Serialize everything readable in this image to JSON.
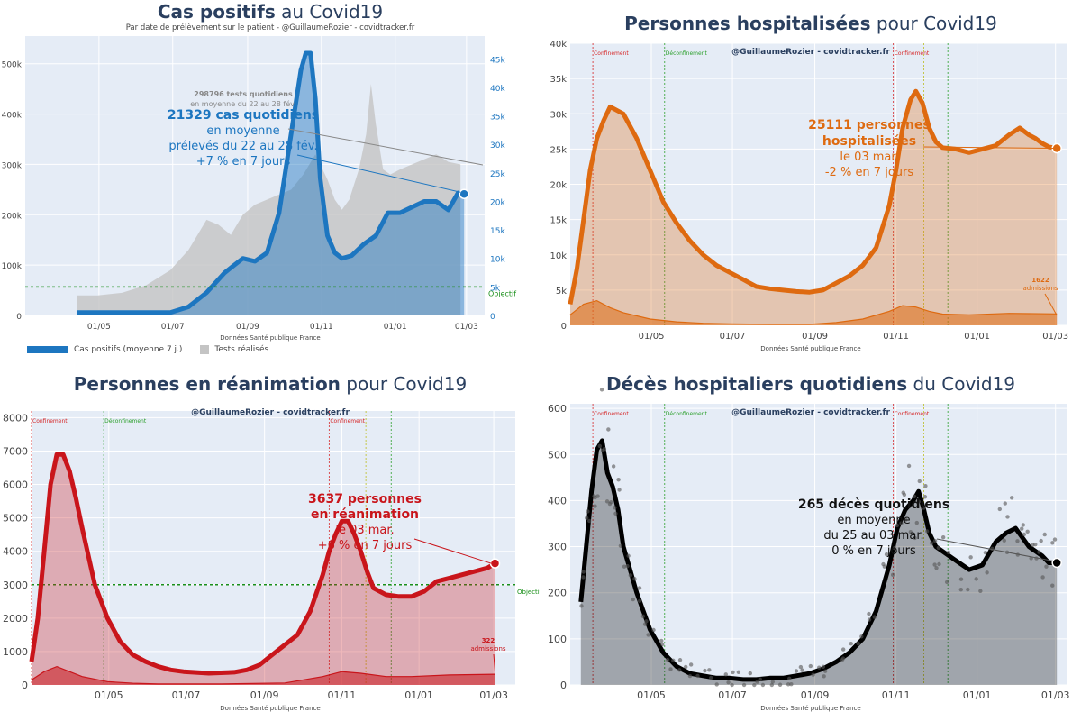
{
  "figure_source": "Données Santé publique France",
  "watermark": "@GuillaumeRozier - covidtracker.fr",
  "chart_data": [
    {
      "id": "cases",
      "type": "area",
      "title_bold": "Cas positifs",
      "title_rest": " au Covid19",
      "subtitle": "Par date de prélèvement sur le patient - @GuillaumeRozier - covidtracker.fr",
      "xlabel": "Données Santé publique France",
      "x_ticks": [
        "01/05",
        "01/07",
        "01/09",
        "01/11",
        "01/01",
        "01/03"
      ],
      "x_tick_days": [
        61,
        122,
        184,
        245,
        306,
        365
      ],
      "xlim": [
        0,
        380
      ],
      "y_left_ticks": [
        "0",
        "100k",
        "200k",
        "300k",
        "400k",
        "500k"
      ],
      "y_left_values": [
        0,
        100000,
        200000,
        300000,
        400000,
        500000
      ],
      "ylim_left": [
        0,
        555000
      ],
      "y_right_ticks": [
        "0",
        "5k",
        "10k",
        "15k",
        "20k",
        "25k",
        "30k",
        "35k",
        "40k",
        "45k"
      ],
      "y_right_values": [
        0,
        5000,
        10000,
        15000,
        20000,
        25000,
        30000,
        35000,
        40000,
        45000
      ],
      "ylim_right": [
        0,
        49000
      ],
      "objective_label": "Objectif",
      "objective_value": 5000,
      "series": [
        {
          "name": "Cas positifs (moyenne 7 j.)",
          "color": "#1d76c0",
          "axis": "right",
          "x": [
            43,
            60,
            80,
            100,
            120,
            135,
            150,
            165,
            180,
            190,
            200,
            210,
            220,
            228,
            232,
            236,
            240,
            244,
            250,
            256,
            262,
            270,
            280,
            290,
            300,
            310,
            320,
            330,
            340,
            350,
            358,
            363
          ],
          "y": [
            500,
            500,
            500,
            500,
            500,
            1500,
            4000,
            7500,
            10000,
            9500,
            11000,
            18000,
            32000,
            43000,
            46000,
            46000,
            38000,
            24000,
            14000,
            11000,
            10000,
            10500,
            12500,
            14000,
            18000,
            18000,
            19000,
            20000,
            20000,
            18500,
            21500,
            21300
          ]
        },
        {
          "name": "Tests réalisés",
          "color": "#c4c4c4",
          "axis": "left",
          "x": [
            43,
            60,
            80,
            100,
            120,
            135,
            150,
            160,
            170,
            180,
            190,
            200,
            210,
            220,
            230,
            240,
            250,
            256,
            262,
            268,
            276,
            282,
            286,
            290,
            296,
            302,
            310,
            320,
            330,
            340,
            350,
            360
          ],
          "y": [
            40000,
            40000,
            45000,
            60000,
            90000,
            130000,
            190000,
            180000,
            160000,
            200000,
            220000,
            230000,
            240000,
            250000,
            280000,
            320000,
            270000,
            230000,
            210000,
            230000,
            290000,
            360000,
            460000,
            380000,
            290000,
            280000,
            290000,
            300000,
            310000,
            320000,
            305000,
            300000
          ]
        }
      ],
      "annotations": {
        "tests_bold": "298796 tests quotidiens",
        "tests_line2": "en moyenne du 22 au 28 fév.",
        "cases_bold": "21329 cas quotidiens",
        "cases_line2": "en moyenne",
        "cases_line3": "prélevés du 22 au 28 fév.",
        "cases_line4": "+7 % en 7 jours"
      },
      "legend": [
        "Cas positifs (moyenne 7 j.)",
        "Tests réalisés"
      ]
    },
    {
      "id": "hosp",
      "type": "area",
      "title_bold": "Personnes hospitalisées",
      "title_rest": " pour Covid19",
      "xlabel": "Données Santé publique France",
      "x_ticks": [
        "01/05",
        "01/07",
        "01/09",
        "01/11",
        "01/01",
        "01/03"
      ],
      "x_tick_days": [
        61,
        122,
        184,
        245,
        306,
        365
      ],
      "xlim": [
        0,
        374
      ],
      "y_left_ticks": [
        "0",
        "5k",
        "10k",
        "15k",
        "20k",
        "25k",
        "30k",
        "35k",
        "40k"
      ],
      "y_left_values": [
        0,
        5000,
        10000,
        15000,
        20000,
        25000,
        30000,
        35000,
        40000
      ],
      "ylim_left": [
        0,
        40000
      ],
      "vlines": [
        {
          "day": 17,
          "label": "Confinement",
          "color": "#d62728"
        },
        {
          "day": 71,
          "label": "Déconfinement",
          "color": "#2ca02c"
        },
        {
          "day": 243,
          "label": "Confinement",
          "color": "#d62728"
        },
        {
          "day": 266,
          "label": "",
          "color": "#bcbd22"
        },
        {
          "day": 284,
          "label": "",
          "color": "#2ca02c"
        }
      ],
      "series": [
        {
          "name": "Hospitalisations",
          "color": "#de6a10",
          "x": [
            0,
            5,
            10,
            15,
            20,
            25,
            30,
            40,
            50,
            60,
            70,
            80,
            90,
            100,
            110,
            120,
            130,
            140,
            150,
            160,
            170,
            180,
            190,
            200,
            210,
            220,
            230,
            240,
            245,
            250,
            256,
            260,
            265,
            270,
            275,
            280,
            290,
            300,
            310,
            320,
            330,
            338,
            345,
            350,
            355,
            360,
            366
          ],
          "y": [
            3000,
            8000,
            15000,
            22000,
            26500,
            29000,
            31000,
            30000,
            26500,
            22000,
            17500,
            14500,
            12000,
            10000,
            8500,
            7500,
            6500,
            5500,
            5200,
            5000,
            4800,
            4700,
            5000,
            6000,
            7000,
            8500,
            11000,
            17000,
            22000,
            28000,
            32000,
            33200,
            31500,
            28000,
            26000,
            25200,
            25000,
            24500,
            25000,
            25500,
            27000,
            28000,
            27000,
            26500,
            25800,
            25300,
            25111
          ]
        },
        {
          "name": "Admissions",
          "color": "#de6a10",
          "x": [
            0,
            10,
            20,
            30,
            40,
            60,
            80,
            100,
            120,
            150,
            180,
            200,
            220,
            240,
            250,
            260,
            270,
            280,
            300,
            330,
            366
          ],
          "y": [
            1500,
            3000,
            3500,
            2500,
            1800,
            900,
            500,
            300,
            200,
            150,
            150,
            400,
            900,
            2000,
            2800,
            2600,
            2000,
            1600,
            1500,
            1700,
            1622
          ]
        }
      ],
      "annotations": {
        "bold1": "25111 personnes",
        "bold2": "hospitalisées",
        "line3": "le 03 mar.",
        "line4": "-2 % en 7 jours",
        "small1": "1622",
        "small2": "admissions"
      }
    },
    {
      "id": "icu",
      "type": "area",
      "title_bold": "Personnes en réanimation",
      "title_rest": " pour Covid19",
      "xlabel": "Données Santé publique France",
      "x_ticks": [
        "01/05",
        "01/07",
        "01/09",
        "01/11",
        "01/01",
        "01/03"
      ],
      "x_tick_days": [
        61,
        122,
        184,
        245,
        306,
        365
      ],
      "xlim": [
        0,
        382
      ],
      "y_left_ticks": [
        "0",
        "1000",
        "2000",
        "3000",
        "4000",
        "5000",
        "6000",
        "7000",
        "8000"
      ],
      "y_left_values": [
        0,
        1000,
        2000,
        3000,
        4000,
        5000,
        6000,
        7000,
        8000
      ],
      "ylim_left": [
        0,
        8200
      ],
      "objective_label": "Objectif",
      "objective_value": 3000,
      "vlines": [
        {
          "day": 0,
          "label": "Confinement",
          "color": "#d62728"
        },
        {
          "day": 57,
          "label": "Déconfinement",
          "color": "#2ca02c"
        },
        {
          "day": 235,
          "label": "Confinement",
          "color": "#d62728"
        },
        {
          "day": 264,
          "label": "",
          "color": "#bcbd22"
        },
        {
          "day": 284,
          "label": "",
          "color": "#2ca02c"
        }
      ],
      "series": [
        {
          "name": "Réanimations",
          "color": "#c9151b",
          "x": [
            0,
            5,
            10,
            15,
            20,
            25,
            30,
            35,
            40,
            50,
            60,
            70,
            80,
            90,
            100,
            110,
            120,
            140,
            160,
            170,
            180,
            190,
            200,
            210,
            220,
            230,
            235,
            240,
            245,
            250,
            255,
            260,
            265,
            270,
            280,
            290,
            300,
            310,
            320,
            330,
            340,
            350,
            360,
            366
          ],
          "y": [
            700,
            2000,
            4000,
            6000,
            6900,
            6900,
            6400,
            5600,
            4700,
            3000,
            2000,
            1300,
            900,
            700,
            550,
            450,
            400,
            350,
            380,
            450,
            600,
            900,
            1200,
            1500,
            2200,
            3300,
            4000,
            4500,
            4900,
            4900,
            4500,
            4000,
            3400,
            2900,
            2700,
            2650,
            2650,
            2800,
            3100,
            3200,
            3300,
            3400,
            3500,
            3637
          ]
        },
        {
          "name": "Admissions",
          "color": "#c9151b",
          "x": [
            0,
            10,
            20,
            30,
            40,
            60,
            80,
            100,
            150,
            200,
            230,
            245,
            260,
            280,
            300,
            330,
            366
          ],
          "y": [
            150,
            400,
            550,
            400,
            250,
            100,
            50,
            30,
            30,
            60,
            250,
            400,
            350,
            250,
            250,
            300,
            322
          ]
        }
      ],
      "annotations": {
        "bold1": "3637 personnes",
        "bold2": "en réanimation",
        "line3": "le 03 mar.",
        "line4": "+6 % en 7 jours",
        "small1": "322",
        "small2": "admissions"
      }
    },
    {
      "id": "deaths",
      "type": "area",
      "title_bold": "Décès hospitaliers quotidiens",
      "title_rest": " du Covid19",
      "xlabel": "Données Santé publique France",
      "x_ticks": [
        "01/05",
        "01/07",
        "01/09",
        "01/11",
        "01/01",
        "01/03"
      ],
      "x_tick_days": [
        61,
        122,
        184,
        245,
        306,
        365
      ],
      "xlim": [
        0,
        374
      ],
      "y_left_ticks": [
        "0",
        "100",
        "200",
        "300",
        "400",
        "500",
        "600"
      ],
      "y_left_values": [
        0,
        100,
        200,
        300,
        400,
        500,
        600
      ],
      "ylim_left": [
        0,
        610
      ],
      "vlines": [
        {
          "day": 17,
          "label": "Confinement",
          "color": "#d62728"
        },
        {
          "day": 71,
          "label": "Déconfinement",
          "color": "#2ca02c"
        },
        {
          "day": 243,
          "label": "Confinement",
          "color": "#d62728"
        },
        {
          "day": 266,
          "label": "",
          "color": "#bcbd22"
        },
        {
          "day": 284,
          "label": "",
          "color": "#2ca02c"
        }
      ],
      "series": [
        {
          "name": "Décès (moyenne 7 j.)",
          "color": "#000000",
          "x": [
            8,
            12,
            16,
            20,
            24,
            28,
            32,
            36,
            40,
            45,
            50,
            55,
            60,
            70,
            80,
            90,
            100,
            110,
            120,
            130,
            140,
            150,
            160,
            170,
            180,
            190,
            200,
            210,
            220,
            230,
            240,
            246,
            252,
            258,
            262,
            266,
            270,
            275,
            280,
            290,
            300,
            310,
            320,
            328,
            335,
            340,
            345,
            350,
            355,
            360,
            366
          ],
          "y": [
            180,
            300,
            420,
            510,
            530,
            460,
            430,
            380,
            300,
            250,
            200,
            160,
            120,
            70,
            40,
            25,
            20,
            15,
            15,
            12,
            12,
            15,
            15,
            20,
            25,
            35,
            50,
            70,
            100,
            160,
            260,
            340,
            380,
            400,
            420,
            380,
            330,
            300,
            290,
            270,
            250,
            260,
            310,
            330,
            340,
            320,
            300,
            290,
            280,
            265,
            265
          ]
        }
      ],
      "annotations": {
        "bold1": "265 décès quotidiens",
        "line2": "en moyenne",
        "line3": "du 25 au 03 mar.",
        "line4": "0 % en 7 jours"
      }
    }
  ]
}
